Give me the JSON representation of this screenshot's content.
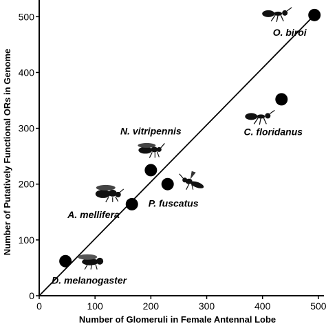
{
  "chart_data": {
    "type": "scatter",
    "title": "",
    "xlabel": "Number of Glomeruli in Female Antennal Lobe",
    "ylabel": "Number of Putatively Functional ORs in Genome",
    "xlim": [
      0,
      510
    ],
    "ylim": [
      0,
      525
    ],
    "xticks": [
      "0",
      "100",
      "200",
      "300",
      "400",
      "500"
    ],
    "yticks": [
      "0",
      "100",
      "200",
      "300",
      "400",
      "500"
    ],
    "grid": false,
    "legend": "none",
    "marker_color": "#000000",
    "fit_line": {
      "x": [
        0,
        500
      ],
      "y": [
        0,
        510
      ]
    },
    "points": [
      {
        "label": "D. melanogaster",
        "x": 47,
        "y": 62,
        "icon": "fly-icon"
      },
      {
        "label": "A. mellifera",
        "x": 166,
        "y": 164,
        "icon": "bee-icon"
      },
      {
        "label": "N. vitripennis",
        "x": 200,
        "y": 225,
        "icon": "wasp-icon"
      },
      {
        "label": "P. fuscatus",
        "x": 230,
        "y": 200,
        "icon": "paper-wasp-icon"
      },
      {
        "label": "C. floridanus",
        "x": 434,
        "y": 352,
        "icon": "ant-icon"
      },
      {
        "label": "O. biroi",
        "x": 493,
        "y": 503,
        "icon": "ant-icon"
      }
    ]
  }
}
